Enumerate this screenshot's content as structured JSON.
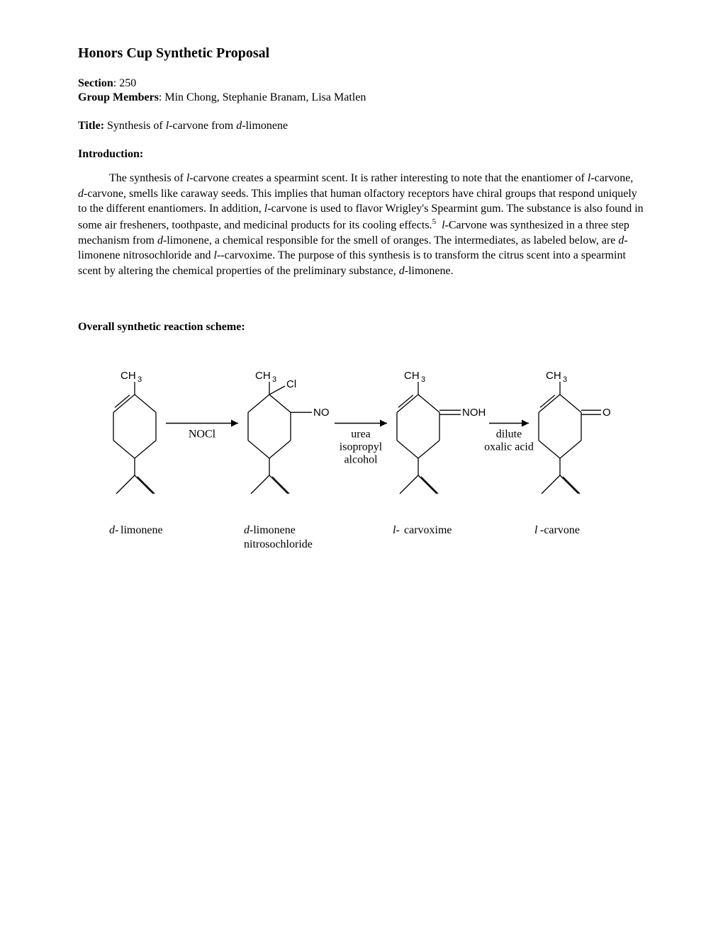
{
  "heading": "Honors Cup Synthetic Proposal",
  "section_label": "Section",
  "section_value": ": 250",
  "members_label": "Group Members",
  "members_value": ": Min Chong, Stephanie Branam, Lisa Matlen",
  "title_label": "Title:",
  "title_value_1": " Synthesis of ",
  "title_value_2": "-carvone from ",
  "title_value_3": "-limonene",
  "intro_label": "Introduction",
  "intro_colon": ":",
  "para_1a": "The synthesis of ",
  "para_1b": "-carvone creates a spearmint scent. It is rather interesting to note that the enantiomer of ",
  "para_1c": "-carvone, ",
  "para_1d": "-carvone, smells like caraway seeds. This implies that human olfactory receptors have chiral groups that respond uniquely to the different enantiomers. In addition, ",
  "para_1e": "-carvone is used to flavor Wrigley's Spearmint gum. The substance is also found in some air fresheners, toothpaste, and medicinal products for its cooling effects.",
  "para_1f": "-Carvone was synthesized in a three step mechanism from ",
  "para_1g": "-limonene, a chemical responsible for the smell of oranges.  The intermediates, as labeled below, are ",
  "para_1h": "-limonene nitrosochloride and ",
  "para_1i": "-carvoxime. The purpose of this synthesis is to transform the citrus scent into a spearmint scent by altering the chemical properties of the preliminary substance, ",
  "para_1j": "-limonene.",
  "sup5": "5",
  "scheme_label": "Overall synthetic reaction scheme:",
  "italic_l": "l",
  "italic_d": "d",
  "italic_l_dash": "l-",
  "scheme": {
    "compounds": [
      {
        "name_prefix_italic": "d-",
        "name_rest": "limonene",
        "name_line2": "",
        "ch3": "CH",
        "sub3": "3",
        "substituent_label": "",
        "substituent2_label": "",
        "double_bond_ring": true,
        "top_sub": "none"
      },
      {
        "name_prefix_italic": "d",
        "name_rest": "-limonene",
        "name_line2": "nitrosochloride",
        "ch3": "CH",
        "sub3": "3",
        "substituent_label": "Cl",
        "substituent2_label": "NO",
        "double_bond_ring": false,
        "top_sub": "cl-no"
      },
      {
        "name_prefix_italic": "l-",
        "name_rest": "carvoxime",
        "name_line2": "",
        "ch3": "CH",
        "sub3": "3",
        "substituent_label": "",
        "substituent2_label": "NOH",
        "double_bond_ring": true,
        "top_sub": "noh"
      },
      {
        "name_prefix_italic": "l",
        "name_rest": "-carvone",
        "name_line2": "",
        "ch3": "CH",
        "sub3": "3",
        "substituent_label": "",
        "substituent2_label": "O",
        "double_bond_ring": true,
        "top_sub": "o"
      }
    ],
    "arrows": [
      {
        "label1": "NOCl",
        "label2": ""
      },
      {
        "label1": "urea",
        "label2": "isopropyl",
        "label3": "alcohol"
      },
      {
        "label1": "dilute",
        "label2": "oxalic acid"
      }
    ],
    "stroke_color": "#000000",
    "text_color": "#000000",
    "font_size_label": 16,
    "font_size_name": 16,
    "font_size_ch3": 15,
    "stroke_width": 1.3
  }
}
